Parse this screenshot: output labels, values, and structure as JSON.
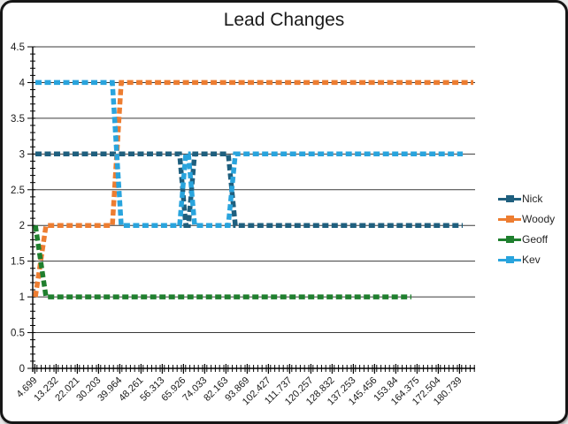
{
  "chart_data": {
    "type": "line",
    "title": "Lead Changes",
    "xlabel": "",
    "ylabel": "",
    "ylim": [
      0,
      4.5
    ],
    "y_ticks": [
      0,
      0.5,
      1,
      1.5,
      2,
      2.5,
      3,
      3.5,
      4,
      4.5
    ],
    "y_tick_labels": [
      "0",
      "0.5",
      "1",
      "1.5",
      "2",
      "2.5",
      "3",
      "3.5",
      "4",
      "4.5"
    ],
    "x_axis_type": "category",
    "x_tick_labels": [
      "4.699",
      "13.232",
      "22.021",
      "30.203",
      "39.964",
      "48.261",
      "56.313",
      "65.926",
      "74.033",
      "82.163",
      "93.869",
      "102.427",
      "111.737",
      "120.257",
      "128.832",
      "137.253",
      "145.456",
      "153.84",
      "164.375",
      "172.504",
      "180.739"
    ],
    "grid": "horizontal",
    "legend_position": "right",
    "legend_entries": [
      "Nick",
      "Woody",
      "Geoff",
      "Kev"
    ],
    "line_style": "thick dashed",
    "series": [
      {
        "name": "Nick",
        "color": "#1F5F7E",
        "points": [
          [
            0.006,
            3
          ],
          [
            0.332,
            3
          ],
          [
            0.346,
            2
          ],
          [
            0.352,
            2
          ],
          [
            0.366,
            3
          ],
          [
            0.442,
            3
          ],
          [
            0.458,
            2
          ],
          [
            0.972,
            2
          ]
        ]
      },
      {
        "name": "Woody",
        "color": "#ED7D31",
        "points": [
          [
            0.006,
            1
          ],
          [
            0.03,
            2
          ],
          [
            0.18,
            2
          ],
          [
            0.2,
            4
          ],
          [
            0.996,
            4
          ]
        ]
      },
      {
        "name": "Geoff",
        "color": "#1F7F2E",
        "points": [
          [
            0.006,
            2
          ],
          [
            0.03,
            1
          ],
          [
            0.856,
            1
          ]
        ]
      },
      {
        "name": "Kev",
        "color": "#29A4DD",
        "points": [
          [
            0.006,
            4
          ],
          [
            0.18,
            4
          ],
          [
            0.2,
            2
          ],
          [
            0.332,
            2
          ],
          [
            0.346,
            3
          ],
          [
            0.352,
            3
          ],
          [
            0.366,
            2
          ],
          [
            0.442,
            2
          ],
          [
            0.458,
            3
          ],
          [
            0.972,
            3
          ]
        ]
      }
    ]
  }
}
